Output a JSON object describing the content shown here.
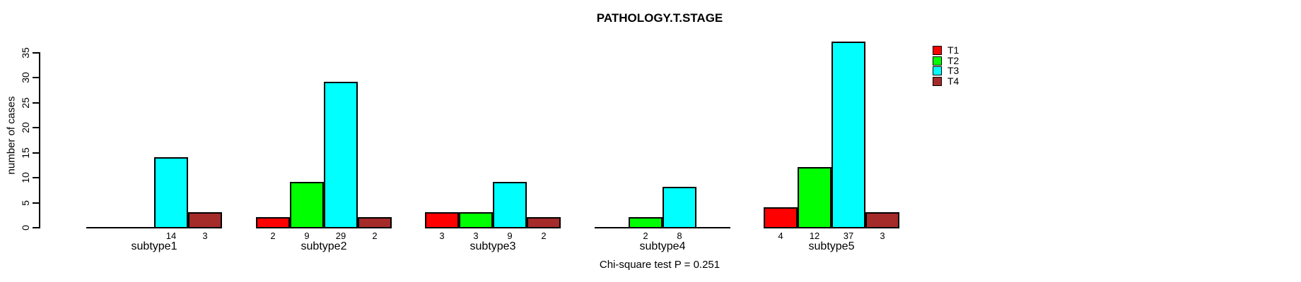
{
  "chart_data": {
    "type": "bar",
    "title": "PATHOLOGY.T.STAGE",
    "ylabel": "number of cases",
    "xlabel": "",
    "categories": [
      "subtype1",
      "subtype2",
      "subtype3",
      "subtype4",
      "subtype5"
    ],
    "series": [
      {
        "name": "T1",
        "color": "#FF0000",
        "values": [
          0,
          2,
          3,
          0,
          4
        ]
      },
      {
        "name": "T2",
        "color": "#00FF00",
        "values": [
          0,
          9,
          3,
          2,
          12
        ]
      },
      {
        "name": "T3",
        "color": "#00FFFF",
        "values": [
          14,
          29,
          9,
          8,
          37
        ]
      },
      {
        "name": "T4",
        "color": "#A52A2A",
        "values": [
          3,
          2,
          2,
          0,
          3
        ]
      }
    ],
    "bar_value_labels_shown": true,
    "yticks": [
      0,
      5,
      10,
      15,
      20,
      25,
      30,
      35
    ],
    "ylim": [
      0,
      37
    ],
    "grid": false,
    "legend_position": "right",
    "axis_color": "#000000",
    "background": "#FFFFFF",
    "annotation": "Chi-square test P = 0.251"
  }
}
